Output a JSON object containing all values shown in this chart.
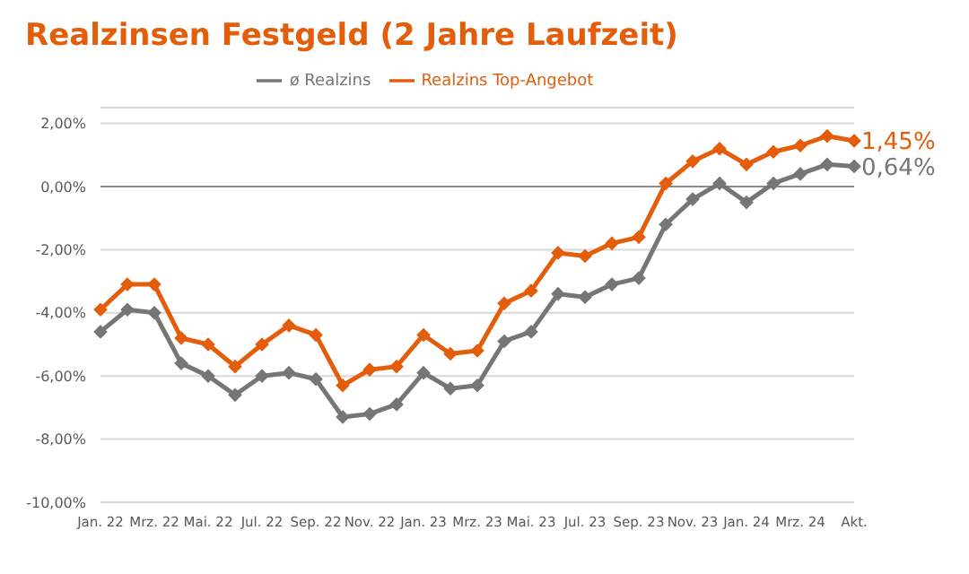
{
  "chart_data": {
    "type": "line",
    "title": "Realzinsen Festgeld (2 Jahre Laufzeit)",
    "categories": [
      "Jan. 22",
      null,
      "Mrz. 22",
      null,
      "Mai. 22",
      null,
      "Jul. 22",
      null,
      "Sep. 22",
      null,
      "Nov. 22",
      null,
      "Jan. 23",
      null,
      "Mrz. 23",
      null,
      "Mai. 23",
      null,
      "Jul. 23",
      null,
      "Sep. 23",
      null,
      "Nov. 23",
      null,
      "Jan. 24",
      null,
      "Mrz. 24",
      null,
      "Akt."
    ],
    "series": [
      {
        "name": "ø Realzins",
        "color": "#767676",
        "values": [
          -4.6,
          -3.9,
          -4.0,
          -5.6,
          -6.0,
          -6.6,
          -6.0,
          -5.9,
          -6.1,
          -7.3,
          -7.2,
          -6.9,
          -5.9,
          -6.4,
          -6.3,
          -4.9,
          -4.6,
          -3.4,
          -3.5,
          -3.1,
          -2.9,
          -1.2,
          -0.4,
          0.1,
          -0.5,
          0.1,
          0.4,
          0.7,
          0.64
        ],
        "value_labels": [
          null,
          null,
          null,
          null,
          null,
          null,
          null,
          null,
          null,
          null,
          null,
          null,
          null,
          null,
          null,
          null,
          null,
          null,
          null,
          null,
          null,
          null,
          null,
          null,
          null,
          null,
          null,
          null,
          "0,64%"
        ]
      },
      {
        "name": "Realzins Top-Angebot",
        "color": "#e35d0a",
        "values": [
          -3.9,
          -3.1,
          -3.1,
          -4.8,
          -5.0,
          -5.7,
          -5.0,
          -4.4,
          -4.7,
          -6.3,
          -5.8,
          -5.7,
          -4.7,
          -5.3,
          -5.2,
          -3.7,
          -3.3,
          -2.1,
          -2.2,
          -1.8,
          -1.6,
          0.1,
          0.8,
          1.2,
          0.7,
          1.1,
          1.3,
          1.6,
          1.45
        ],
        "value_labels": [
          null,
          null,
          null,
          null,
          null,
          null,
          null,
          null,
          null,
          null,
          null,
          null,
          null,
          null,
          null,
          null,
          null,
          null,
          null,
          null,
          null,
          null,
          null,
          null,
          null,
          null,
          null,
          null,
          "1,45%"
        ]
      }
    ],
    "ylim": [
      -10,
      2.5
    ],
    "yticks": [
      {
        "value": -10,
        "label": "-10,00%"
      },
      {
        "value": -8,
        "label": "-8,00%"
      },
      {
        "value": -6,
        "label": "-6,00%"
      },
      {
        "value": -4,
        "label": "-4,00%"
      },
      {
        "value": -2,
        "label": "-2,00%"
      },
      {
        "value": 0,
        "label": "0,00%"
      },
      {
        "value": 2,
        "label": "2,00%"
      }
    ],
    "ref_lines": [
      {
        "axis": "y",
        "value": 0,
        "color": "#8c8c8c"
      }
    ],
    "grid": "y",
    "legend": "top",
    "marker": "diamond",
    "line_style": "solid"
  }
}
